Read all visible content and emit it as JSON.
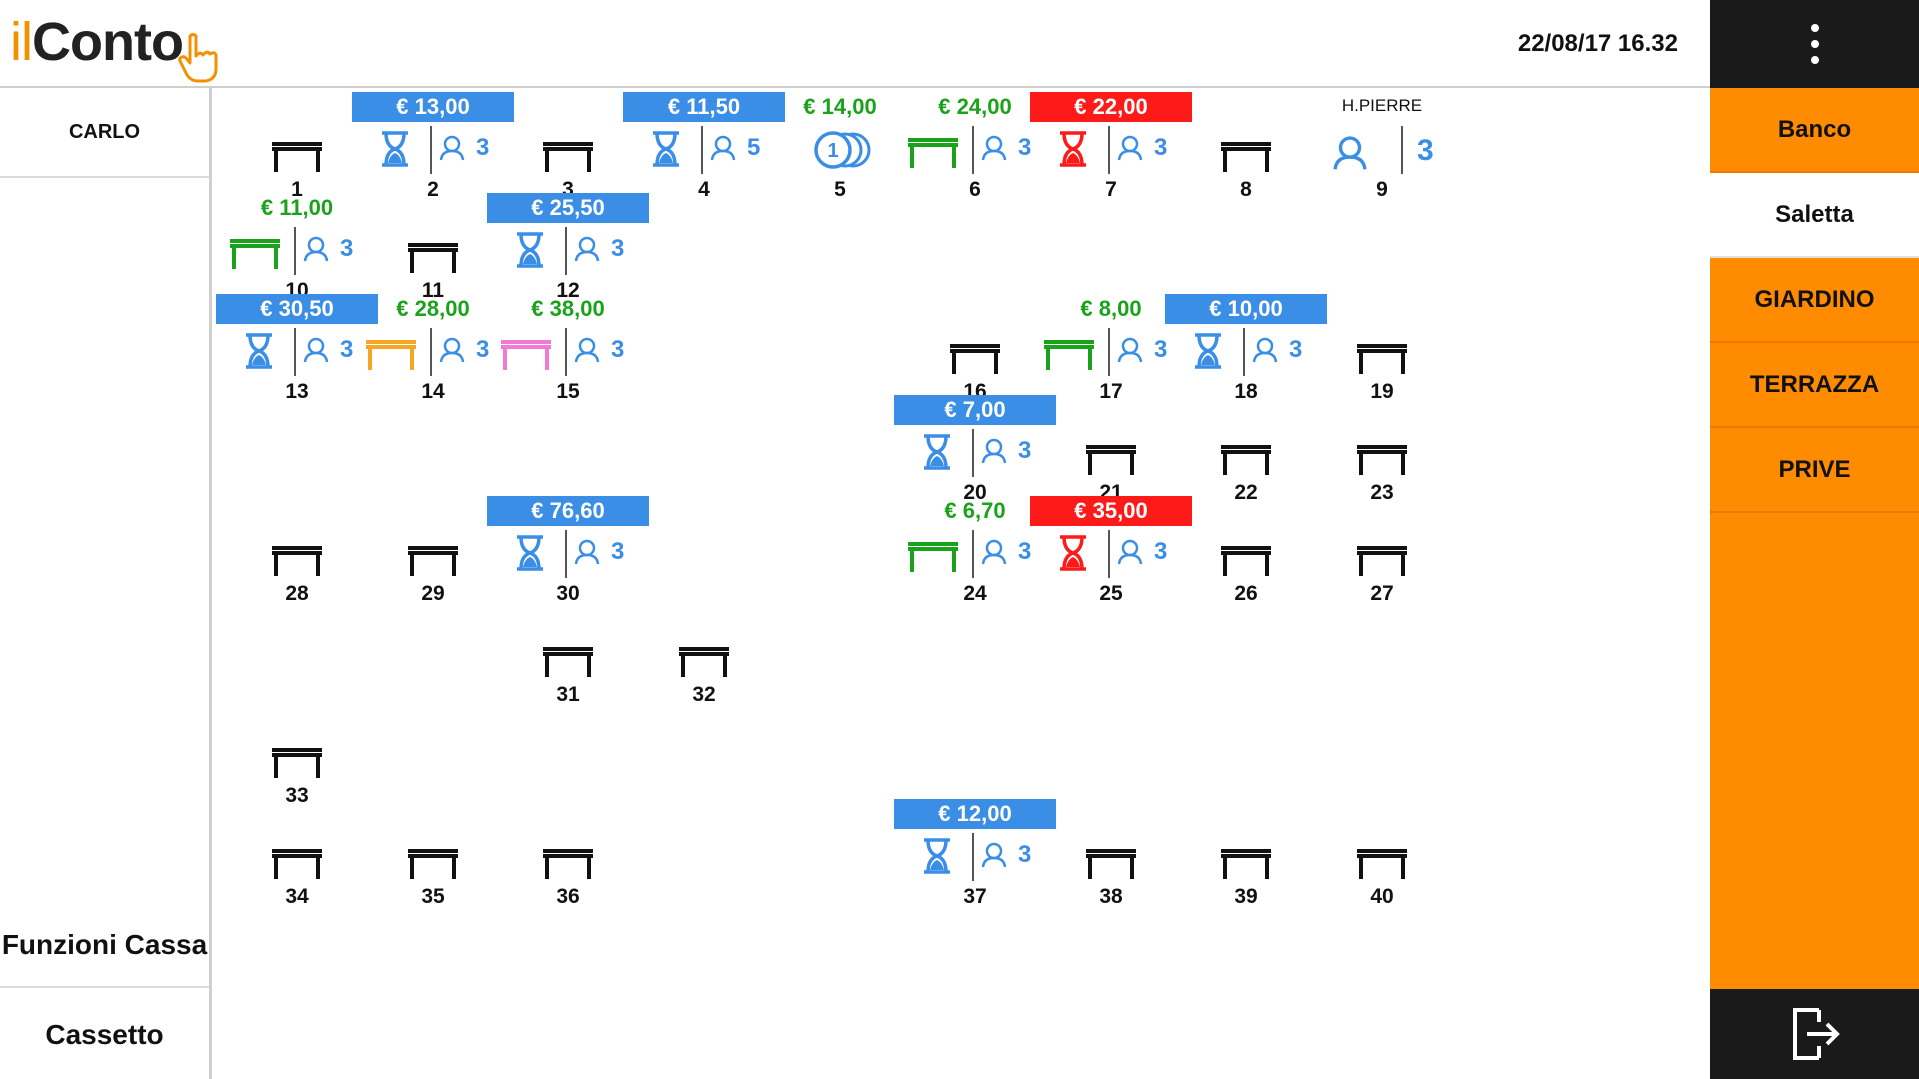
{
  "header": {
    "logo_il": "il",
    "logo_conto": "Conto",
    "datetime": "22/08/17 16.32"
  },
  "left": {
    "waiter": "CARLO",
    "funzioni": "Funzioni Cassa",
    "cassetto": "Cassetto"
  },
  "rooms": [
    {
      "label": "Banco",
      "active": false
    },
    {
      "label": "Saletta",
      "active": true
    },
    {
      "label": "GIARDINO",
      "active": false
    },
    {
      "label": "TERRAZZA",
      "active": false
    },
    {
      "label": "PRIVE",
      "active": false
    }
  ],
  "colors": {
    "orange": "#ff8c00",
    "blue": "#3a8ee6",
    "green": "#1aa31a",
    "red": "#ff1a1a",
    "yellow": "#f5a623",
    "pink": "#f07ad6",
    "dark": "#1a1a1a"
  },
  "tables": [
    {
      "number": "1",
      "row": 0,
      "col": 0,
      "state": "free"
    },
    {
      "number": "2",
      "row": 0,
      "col": 1,
      "state": "waiting",
      "price": "€ 13,00",
      "covers": "3"
    },
    {
      "number": "3",
      "row": 0,
      "col": 2,
      "state": "free"
    },
    {
      "number": "4",
      "row": 0,
      "col": 3,
      "state": "waiting",
      "price": "€ 11,50",
      "covers": "5"
    },
    {
      "number": "5",
      "row": 0,
      "col": 4,
      "state": "coins",
      "price": "€ 14,00"
    },
    {
      "number": "6",
      "row": 0,
      "col": 5,
      "state": "green",
      "price": "€ 24,00",
      "covers": "3"
    },
    {
      "number": "7",
      "row": 0,
      "col": 6,
      "state": "alert",
      "price": "€ 22,00",
      "covers": "3"
    },
    {
      "number": "8",
      "row": 0,
      "col": 7,
      "state": "free"
    },
    {
      "number": "9",
      "row": 0,
      "col": 8,
      "state": "reserved",
      "name": "H.PIERRE",
      "covers": "3"
    },
    {
      "number": "10",
      "row": 1,
      "col": 0,
      "state": "green",
      "price": "€ 11,00",
      "covers": "3"
    },
    {
      "number": "11",
      "row": 1,
      "col": 1,
      "state": "free"
    },
    {
      "number": "12",
      "row": 1,
      "col": 2,
      "state": "waiting",
      "price": "€ 25,50",
      "covers": "3"
    },
    {
      "number": "13",
      "row": 2,
      "col": 0,
      "state": "waiting",
      "price": "€ 30,50",
      "covers": "3"
    },
    {
      "number": "14",
      "row": 2,
      "col": 1,
      "state": "yellow",
      "price": "€ 28,00",
      "covers": "3"
    },
    {
      "number": "15",
      "row": 2,
      "col": 2,
      "state": "pink",
      "price": "€ 38,00",
      "covers": "3"
    },
    {
      "number": "16",
      "row": 2,
      "col": 5,
      "state": "free"
    },
    {
      "number": "17",
      "row": 2,
      "col": 6,
      "state": "green",
      "price": "€ 8,00",
      "covers": "3"
    },
    {
      "number": "18",
      "row": 2,
      "col": 7,
      "state": "waiting",
      "price": "€ 10,00",
      "covers": "3"
    },
    {
      "number": "19",
      "row": 2,
      "col": 8,
      "state": "free"
    },
    {
      "number": "20",
      "row": 3,
      "col": 5,
      "state": "waiting",
      "price": "€ 7,00",
      "covers": "3"
    },
    {
      "number": "21",
      "row": 3,
      "col": 6,
      "state": "free"
    },
    {
      "number": "22",
      "row": 3,
      "col": 7,
      "state": "free"
    },
    {
      "number": "23",
      "row": 3,
      "col": 8,
      "state": "free"
    },
    {
      "number": "28",
      "row": 4,
      "col": 0,
      "state": "free"
    },
    {
      "number": "29",
      "row": 4,
      "col": 1,
      "state": "free"
    },
    {
      "number": "30",
      "row": 4,
      "col": 2,
      "state": "waiting",
      "price": "€ 76,60",
      "covers": "3"
    },
    {
      "number": "24",
      "row": 4,
      "col": 5,
      "state": "green",
      "price": "€ 6,70",
      "covers": "3"
    },
    {
      "number": "25",
      "row": 4,
      "col": 6,
      "state": "alert",
      "price": "€ 35,00",
      "covers": "3"
    },
    {
      "number": "26",
      "row": 4,
      "col": 7,
      "state": "free"
    },
    {
      "number": "27",
      "row": 4,
      "col": 8,
      "state": "free"
    },
    {
      "number": "31",
      "row": 5,
      "col": 2,
      "state": "free"
    },
    {
      "number": "32",
      "row": 5,
      "col": 3,
      "state": "free"
    },
    {
      "number": "33",
      "row": 6,
      "col": 0,
      "state": "free"
    },
    {
      "number": "34",
      "row": 7,
      "col": 0,
      "state": "free"
    },
    {
      "number": "35",
      "row": 7,
      "col": 1,
      "state": "free"
    },
    {
      "number": "36",
      "row": 7,
      "col": 2,
      "state": "free"
    },
    {
      "number": "37",
      "row": 7,
      "col": 5,
      "state": "waiting",
      "price": "€ 12,00",
      "covers": "3"
    },
    {
      "number": "38",
      "row": 7,
      "col": 6,
      "state": "free"
    },
    {
      "number": "39",
      "row": 7,
      "col": 7,
      "state": "free"
    },
    {
      "number": "40",
      "row": 7,
      "col": 8,
      "state": "free"
    }
  ]
}
